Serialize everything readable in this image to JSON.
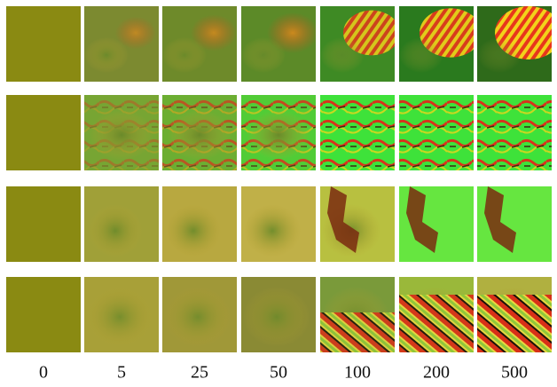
{
  "column_labels": [
    "0",
    "5",
    "25",
    "50",
    "100",
    "200",
    "500"
  ]
}
